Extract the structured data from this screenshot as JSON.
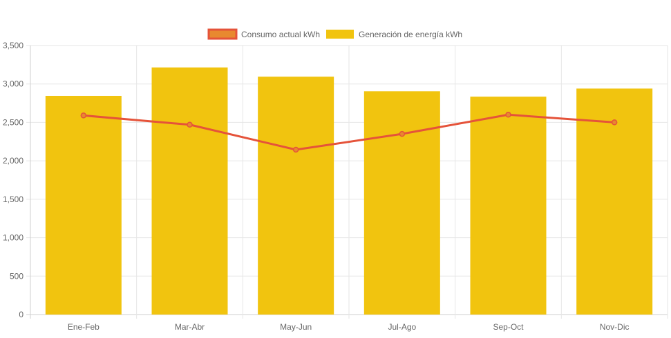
{
  "chart_data": {
    "type": "bar",
    "categories": [
      "Ene-Feb",
      "Mar-Abr",
      "May-Jun",
      "Jul-Ago",
      "Sep-Oct",
      "Nov-Dic"
    ],
    "series": [
      {
        "name": "Consumo actual kWh",
        "type": "line",
        "values": [
          2590,
          2470,
          2145,
          2350,
          2600,
          2500
        ],
        "color": "#e5533a",
        "legend_fill": "#e8892f"
      },
      {
        "name": "Generación de energía kWh",
        "type": "bar",
        "values": [
          2845,
          3215,
          3095,
          2905,
          2835,
          2940
        ],
        "color": "#f1c40f"
      }
    ],
    "ylim": [
      0,
      3500
    ],
    "yticks": [
      0,
      500,
      1000,
      1500,
      2000,
      2500,
      3000,
      3500
    ],
    "ytick_labels": [
      "0",
      "500",
      "1,000",
      "1,500",
      "2,000",
      "2,500",
      "3,000",
      "3,500"
    ],
    "grid": true,
    "legend_position": "top-center",
    "title": "",
    "xlabel": "",
    "ylabel": ""
  }
}
